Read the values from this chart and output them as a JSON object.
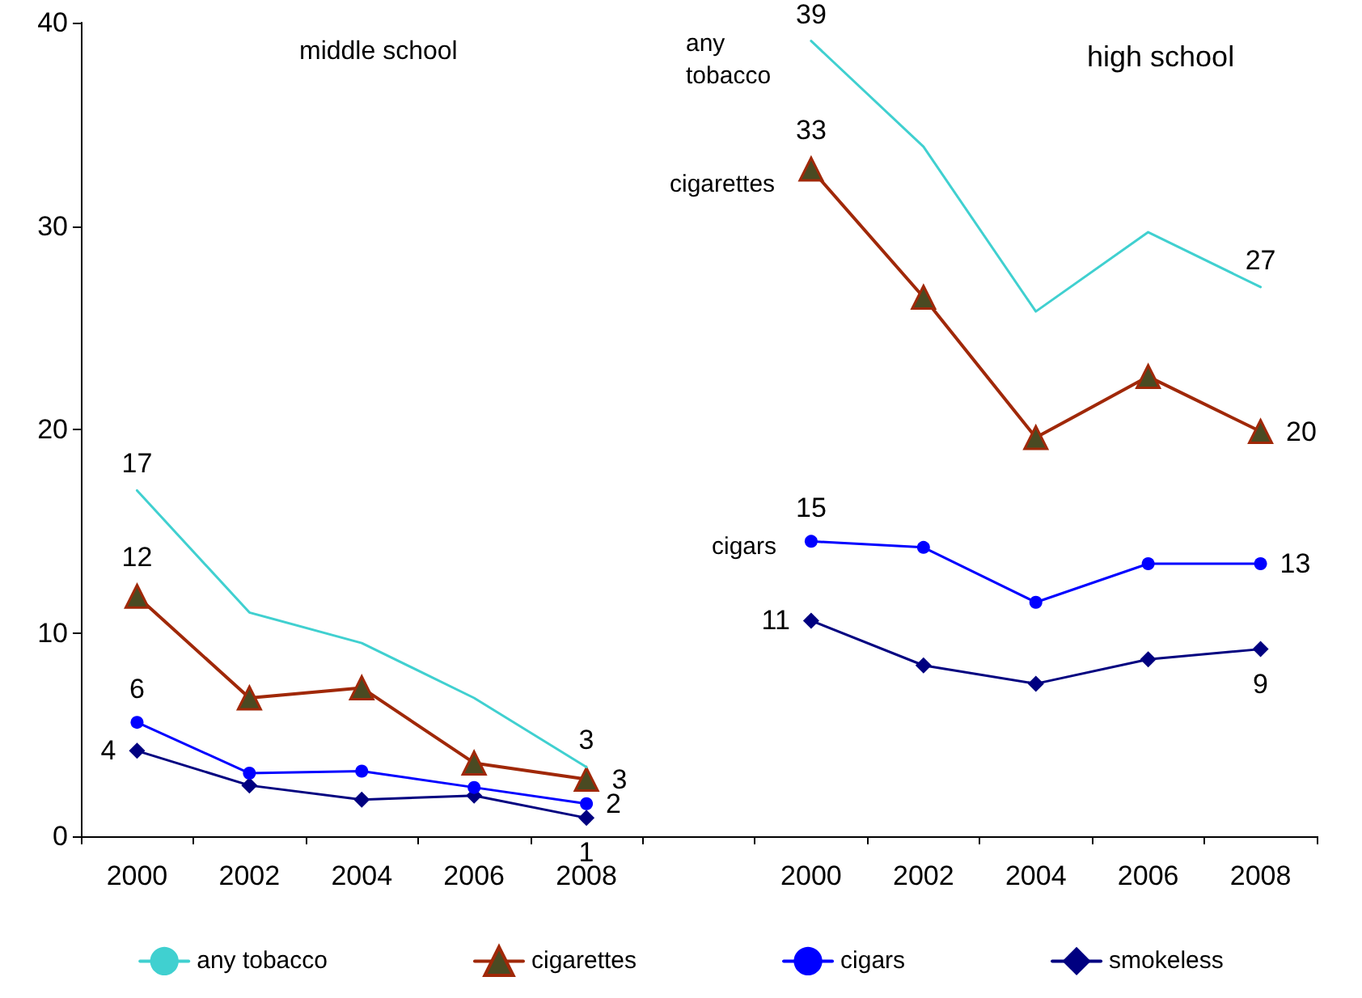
{
  "chart_data": {
    "type": "line",
    "categories": [
      "2000",
      "2002",
      "2004",
      "2006",
      "2008",
      null,
      "2000",
      "2002",
      "2004",
      "2006",
      "2008"
    ],
    "series": [
      {
        "name": "any tobacco",
        "color": "#40d0d0",
        "marker": "none",
        "values": [
          17.0,
          11.0,
          9.5,
          6.8,
          3.4,
          null,
          39.1,
          33.9,
          25.8,
          29.7,
          27.0
        ],
        "value_labels": [
          "17",
          null,
          null,
          null,
          "3",
          null,
          "39",
          null,
          null,
          null,
          "27"
        ]
      },
      {
        "name": "cigarettes",
        "color": "#a02808",
        "marker": "triangle",
        "values": [
          11.8,
          6.8,
          7.3,
          3.6,
          2.8,
          null,
          32.8,
          26.5,
          19.6,
          22.6,
          19.9
        ],
        "value_labels": [
          "12",
          null,
          null,
          null,
          "3",
          null,
          "33",
          null,
          null,
          null,
          "20"
        ]
      },
      {
        "name": "cigars",
        "color": "#0000ff",
        "marker": "circle",
        "values": [
          5.6,
          3.1,
          3.2,
          2.4,
          1.6,
          null,
          14.5,
          14.2,
          11.5,
          13.4,
          13.4
        ],
        "value_labels": [
          "6",
          null,
          null,
          null,
          "2",
          null,
          "15",
          null,
          null,
          null,
          "13"
        ]
      },
      {
        "name": "smokeless",
        "color": "#000080",
        "marker": "diamond",
        "values": [
          4.2,
          2.5,
          1.8,
          2.0,
          0.9,
          null,
          10.6,
          8.4,
          7.5,
          8.7,
          9.2
        ],
        "value_labels": [
          "4",
          null,
          null,
          null,
          "1",
          null,
          "11",
          null,
          null,
          null,
          "9"
        ]
      }
    ],
    "annotations": [
      "middle school",
      "high school",
      "any tobacco",
      "cigarettes",
      "cigars"
    ],
    "ylim": [
      0,
      40
    ],
    "yticks": [
      0,
      10,
      20,
      30,
      40
    ],
    "grid": false,
    "legend": "bottom"
  }
}
